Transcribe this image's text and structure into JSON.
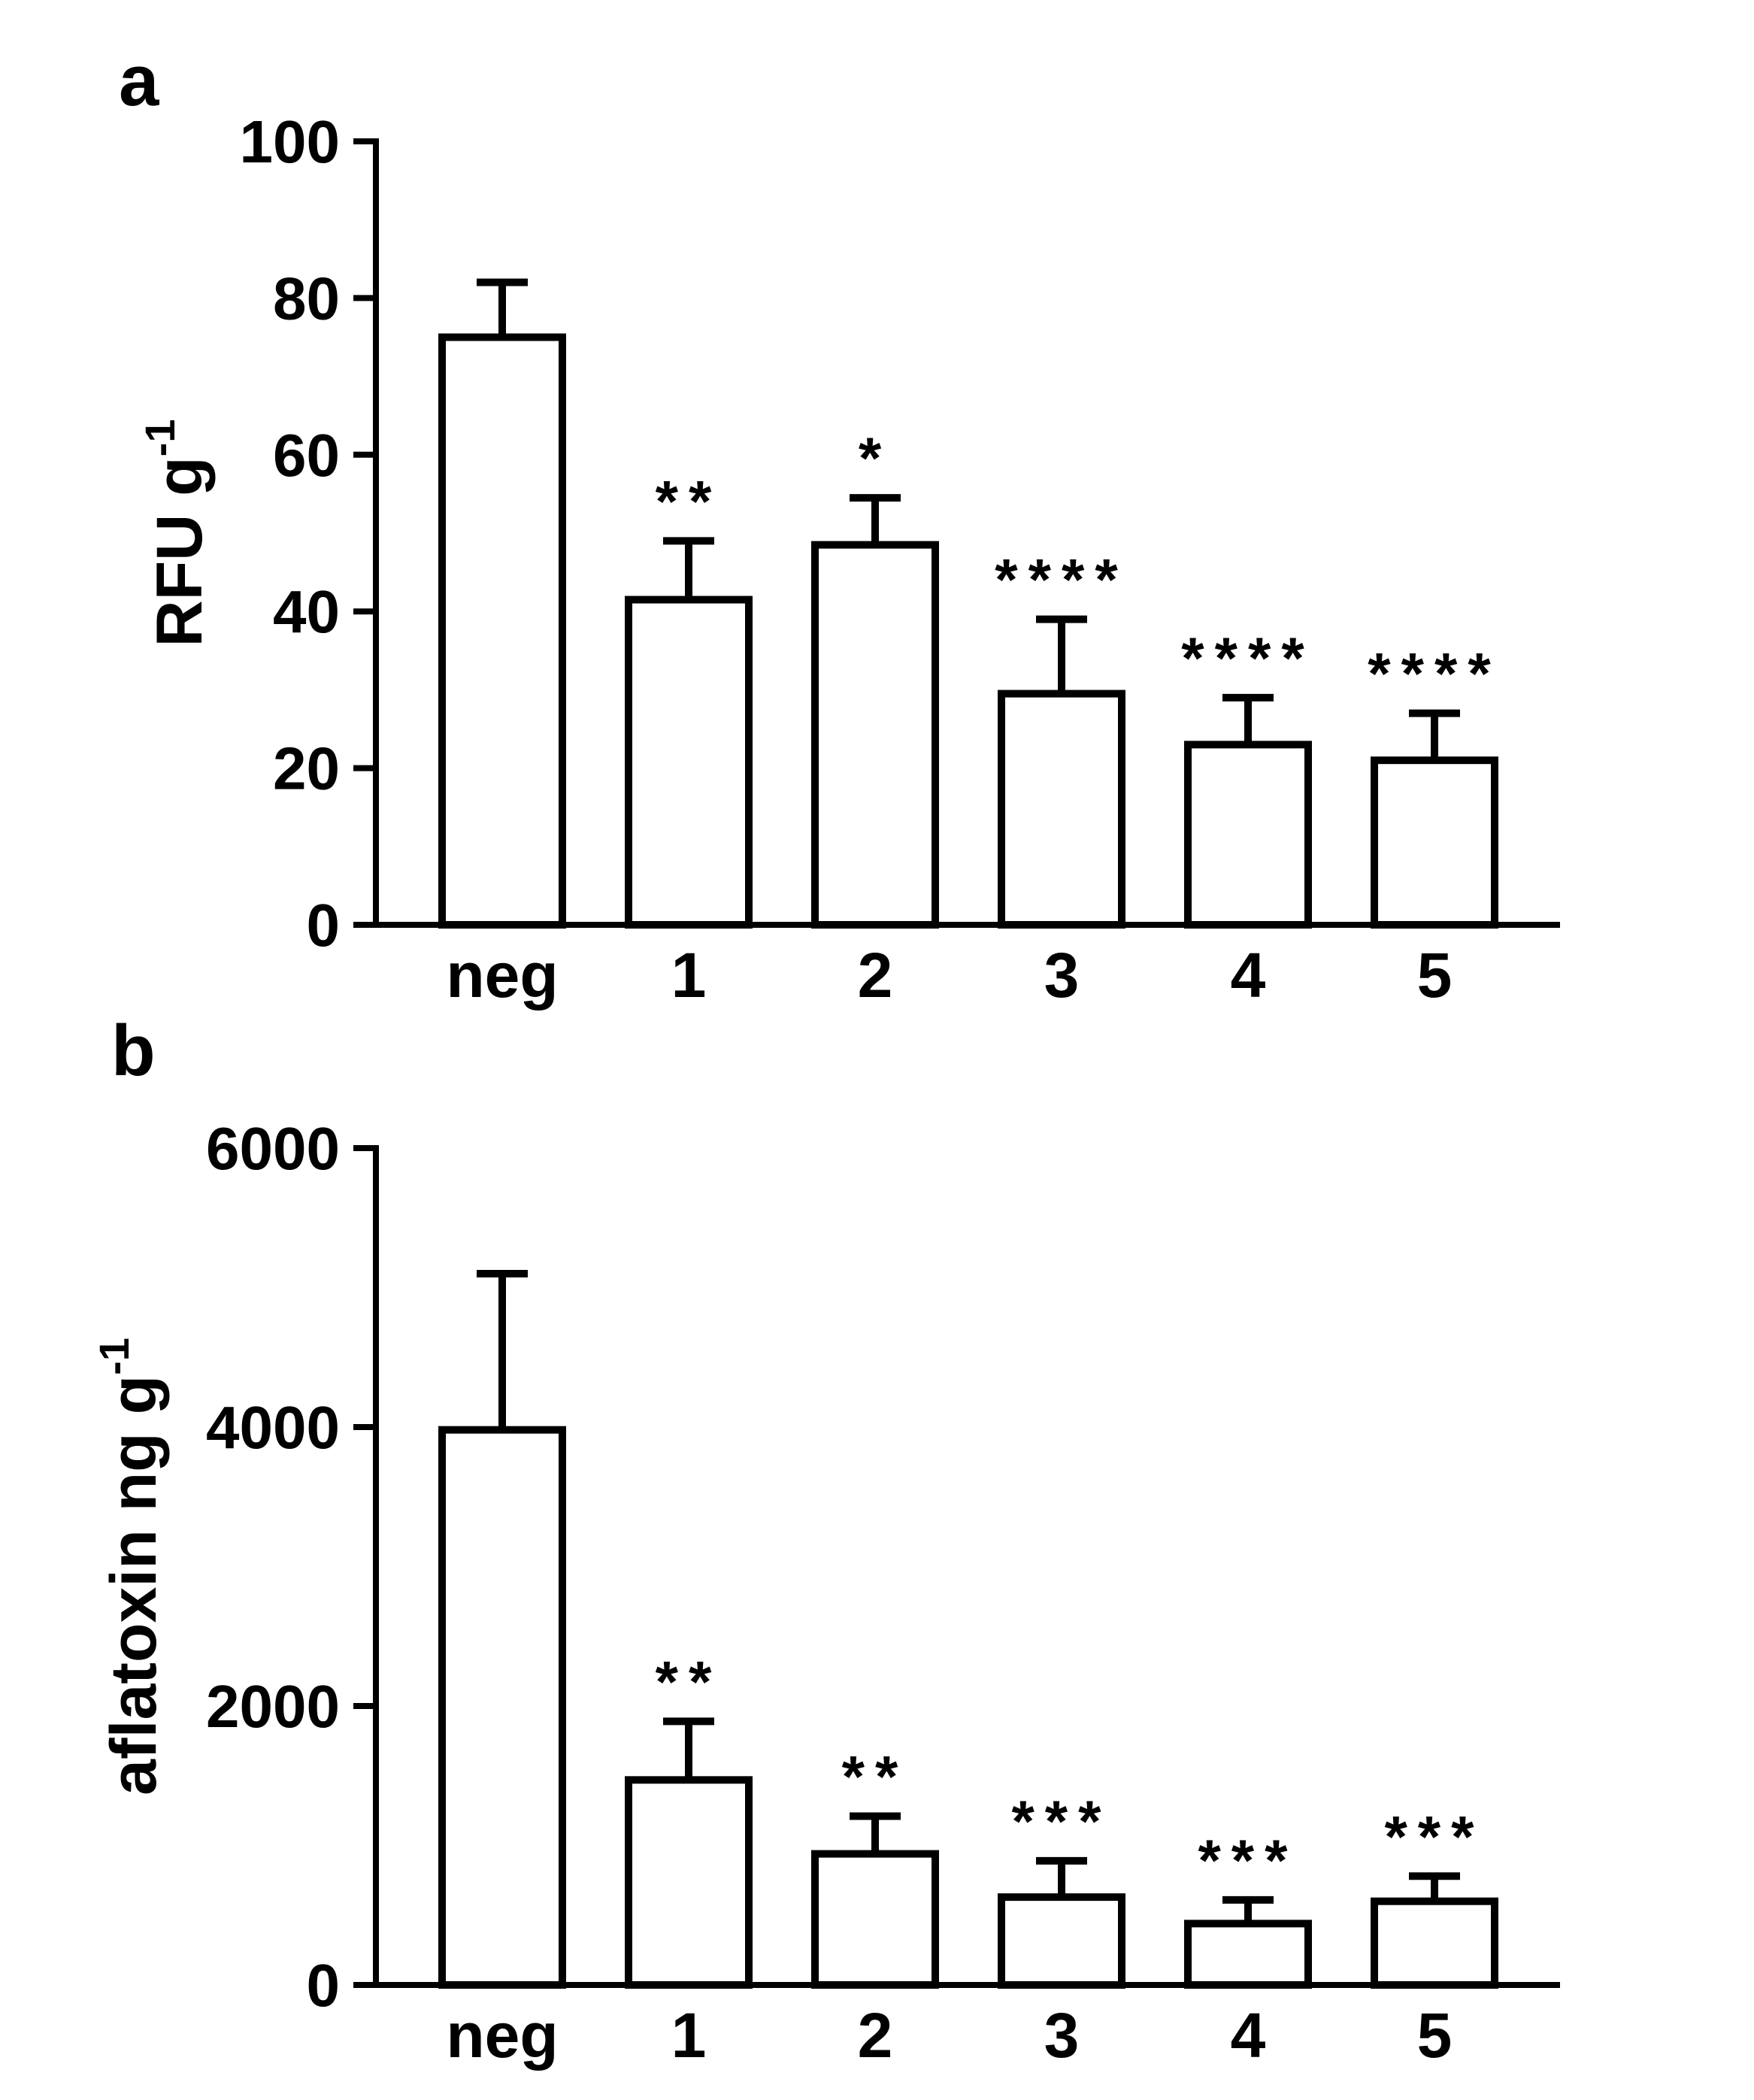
{
  "figure": {
    "background": "#ffffff",
    "ink": "#000000"
  },
  "chart_data": [
    {
      "type": "bar",
      "panel_label": "a",
      "title": "",
      "xlabel": "",
      "ylabel": "RFU g⁻¹",
      "ylabel_main": "RFU g",
      "ylabel_sup": "-1",
      "categories": [
        "neg",
        "1",
        "2",
        "3",
        "4",
        "5"
      ],
      "values": [
        75,
        41.5,
        48.5,
        29.5,
        23,
        21
      ],
      "errors_upper": [
        7,
        7.5,
        6,
        9.5,
        6,
        6
      ],
      "significance": [
        "",
        "**",
        "*",
        "****",
        "****",
        "****"
      ],
      "yticks": [
        0,
        20,
        40,
        60,
        80,
        100
      ],
      "ylim": [
        0,
        100
      ],
      "bar_fill": "#ffffff",
      "bar_stroke": "#000000",
      "grid": false,
      "legend": "none"
    },
    {
      "type": "bar",
      "panel_label": "b",
      "title": "",
      "xlabel": "",
      "ylabel": "aflatoxin ng g⁻¹",
      "ylabel_main": "aflatoxin ng g",
      "ylabel_sup": "-1",
      "categories": [
        "neg",
        "1",
        "2",
        "3",
        "4",
        "5"
      ],
      "values": [
        3980,
        1470,
        940,
        630,
        440,
        600
      ],
      "errors_upper": [
        1120,
        420,
        270,
        260,
        170,
        180
      ],
      "significance": [
        "",
        "**",
        "**",
        "***",
        "***",
        "***"
      ],
      "yticks": [
        0,
        2000,
        4000,
        6000
      ],
      "ylim": [
        0,
        6000
      ],
      "bar_fill": "#ffffff",
      "bar_stroke": "#000000",
      "grid": false,
      "legend": "none"
    }
  ]
}
